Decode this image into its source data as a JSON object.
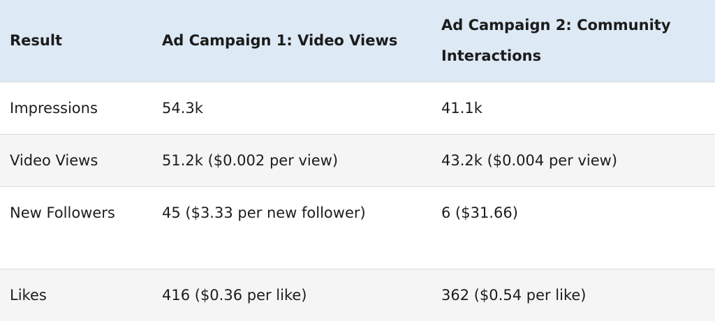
{
  "table": {
    "headers": [
      "Result",
      "Ad Campaign 1: Video Views",
      "Ad Campaign 2: Community Interactions"
    ],
    "rows": [
      [
        "Impressions",
        "54.3k",
        "41.1k"
      ],
      [
        "Video Views",
        "51.2k ($0.002 per view)",
        "43.2k ($0.004 per view)"
      ],
      [
        "New Followers",
        "45 ($3.33 per new follower)",
        "6 ($31.66)"
      ],
      [
        "Likes",
        "416 ($0.36 per like)",
        "362 ($0.54 per like)"
      ]
    ]
  },
  "colors": {
    "header_bg": "#dde9f4",
    "alt_row_bg": "#f5f5f5",
    "text": "#1c1c1c"
  }
}
